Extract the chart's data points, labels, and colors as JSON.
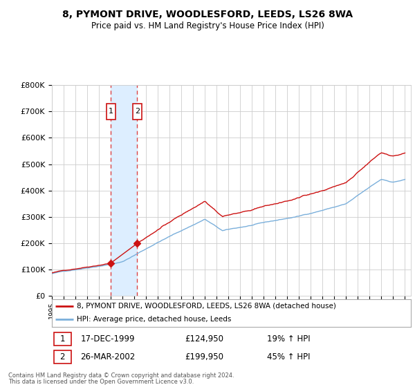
{
  "title1": "8, PYMONT DRIVE, WOODLESFORD, LEEDS, LS26 8WA",
  "title2": "Price paid vs. HM Land Registry's House Price Index (HPI)",
  "background_color": "#ffffff",
  "grid_color": "#cccccc",
  "sale1_date_num": 2000.0,
  "sale2_date_num": 2002.25,
  "sale1_price": 124950,
  "sale2_price": 199950,
  "ylim": [
    0,
    800000
  ],
  "xlim": [
    1995.0,
    2025.5
  ],
  "legend_label1": "8, PYMONT DRIVE, WOODLESFORD, LEEDS, LS26 8WA (detached house)",
  "legend_label2": "HPI: Average price, detached house, Leeds",
  "table_row1": [
    "1",
    "17-DEC-1999",
    "£124,950",
    "19% ↑ HPI"
  ],
  "table_row2": [
    "2",
    "26-MAR-2002",
    "£199,950",
    "45% ↑ HPI"
  ],
  "footer1": "Contains HM Land Registry data © Crown copyright and database right 2024.",
  "footer2": "This data is licensed under the Open Government Licence v3.0.",
  "hpi_color": "#7aafdb",
  "price_color": "#cc1111",
  "marker_color": "#cc1111",
  "vline_color": "#dd4444",
  "shade_color": "#ddeeff"
}
